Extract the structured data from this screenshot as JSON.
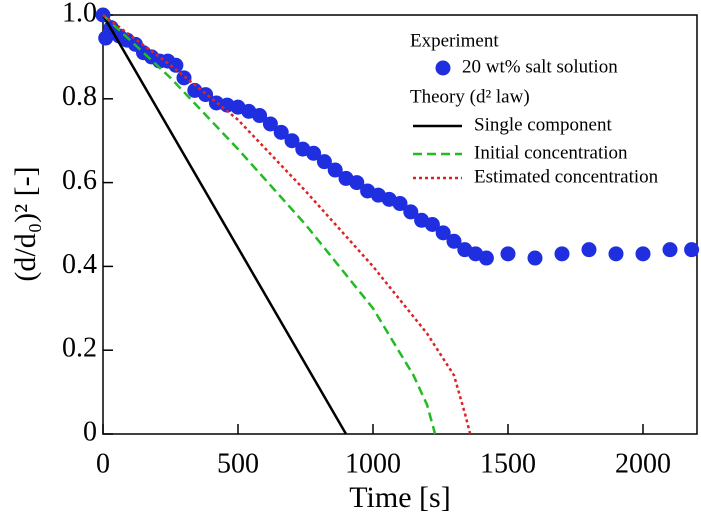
{
  "chart_data": {
    "type": "line",
    "xlabel": "Time [s]",
    "ylabel": "(d/d₀)² [-]",
    "xlim": [
      0,
      2200
    ],
    "ylim": [
      0,
      1.0
    ],
    "xticks": [
      0,
      500,
      1000,
      1500,
      2000
    ],
    "yticks": [
      0,
      0.2,
      0.4,
      0.6,
      0.8,
      {
        "value": 1.0,
        "label": "1.0"
      }
    ],
    "legend_groups": [
      "Experiment",
      "Theory (d² law)"
    ],
    "series": [
      {
        "name": "20 wt% salt solution",
        "type": "scatter",
        "color": "#1f2fe0",
        "x": [
          0,
          10,
          30,
          60,
          90,
          120,
          150,
          180,
          210,
          240,
          270,
          300,
          340,
          380,
          420,
          460,
          500,
          540,
          580,
          620,
          660,
          700,
          740,
          780,
          820,
          860,
          900,
          940,
          980,
          1020,
          1060,
          1100,
          1140,
          1180,
          1220,
          1260,
          1300,
          1340,
          1380,
          1420,
          1500,
          1600,
          1700,
          1800,
          1900,
          2000,
          2100,
          2180
        ],
        "values": [
          1.0,
          0.945,
          0.97,
          0.95,
          0.94,
          0.93,
          0.91,
          0.9,
          0.89,
          0.89,
          0.88,
          0.85,
          0.82,
          0.81,
          0.79,
          0.785,
          0.78,
          0.77,
          0.76,
          0.74,
          0.72,
          0.7,
          0.68,
          0.67,
          0.65,
          0.63,
          0.61,
          0.6,
          0.58,
          0.57,
          0.56,
          0.55,
          0.53,
          0.51,
          0.5,
          0.48,
          0.46,
          0.44,
          0.43,
          0.42,
          0.43,
          0.42,
          0.43,
          0.44,
          0.43,
          0.43,
          0.44,
          0.44
        ]
      },
      {
        "name": "Single component",
        "type": "line",
        "color": "#000000",
        "dash": "none",
        "x": [
          0,
          900
        ],
        "values": [
          1.0,
          0
        ]
      },
      {
        "name": "Initial concentration",
        "type": "line",
        "color": "#22bb22",
        "dash": "9 5",
        "x": [
          0,
          250,
          500,
          750,
          1000,
          1150,
          1200,
          1230
        ],
        "values": [
          1.0,
          0.85,
          0.68,
          0.5,
          0.3,
          0.14,
          0.07,
          0
        ]
      },
      {
        "name": "Estimated concentration",
        "type": "line",
        "color": "#dd2222",
        "dash": "3 3",
        "x": [
          0,
          250,
          500,
          750,
          1000,
          1200,
          1300,
          1340,
          1360
        ],
        "values": [
          1.0,
          0.88,
          0.75,
          0.58,
          0.4,
          0.24,
          0.14,
          0.05,
          0
        ]
      }
    ]
  }
}
